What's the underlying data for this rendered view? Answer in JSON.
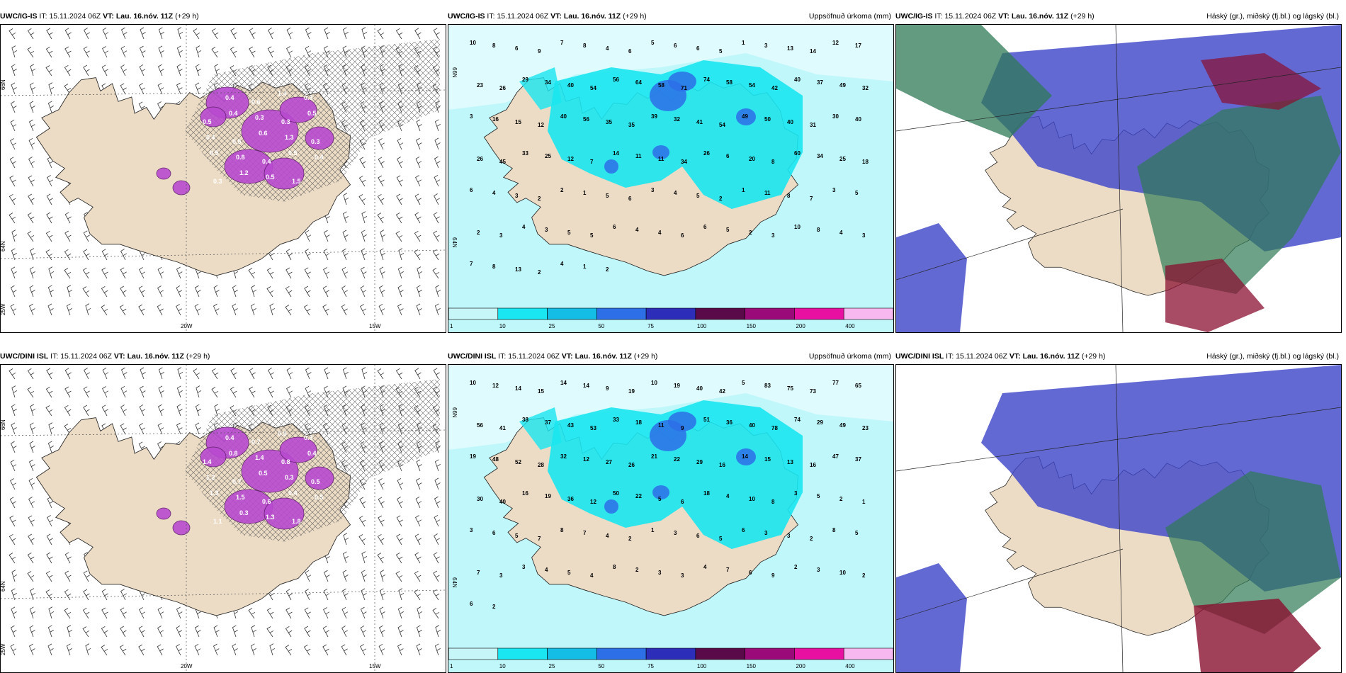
{
  "colors": {
    "land": "#ecdcc6",
    "precip_light": "#bff7fb",
    "precip_mid": "#19e6f0",
    "precip_heavy": "#2d6fe6",
    "magenta": "#b84ad0",
    "cloud_high": "#2f7a55",
    "cloud_mid": "#3c44c8",
    "cloud_low": "#8a1030"
  },
  "panels": [
    {
      "id": "ig-wind",
      "model": "UWC/IG-IS",
      "it_label": "IT:",
      "it_value": "15.11.2024 06Z",
      "vt_label": "VT:",
      "vt_value": "Lau. 16.nóv. 11Z",
      "lead": "(+29 h)",
      "title_right": "",
      "kind": "wind",
      "lat_labels": [
        "66N",
        "64N",
        "25W"
      ],
      "lon_labels": [
        "20W",
        "15W"
      ],
      "values": [
        "0.5",
        "0.4",
        "0.6",
        "1.4",
        "0.3",
        "0.5",
        "0.4",
        "0.3",
        "0.3",
        "0.5",
        "0.4",
        "0.5",
        "0.6",
        "1.3",
        "0.3",
        "0.5",
        "0.8",
        "0.4",
        "0.5",
        "0.4",
        "0.3",
        "1.2",
        "0.5",
        "1.5"
      ]
    },
    {
      "id": "ig-precip",
      "model": "UWC/IG-IS",
      "it_label": "IT:",
      "it_value": "15.11.2024 06Z",
      "vt_label": "VT:",
      "vt_value": "Lau. 16.nóv. 11Z",
      "lead": "(+29 h)",
      "title_right": "Uppsöfnuð úrkoma (mm)",
      "kind": "precip",
      "lat_labels": [
        "66N",
        "64N"
      ],
      "legend": [
        "1",
        "10",
        "25",
        "50",
        "75",
        "100",
        "150",
        "200",
        "400"
      ],
      "values": [
        "10",
        "8",
        "6",
        "9",
        "7",
        "8",
        "4",
        "6",
        "5",
        "6",
        "6",
        "5",
        "1",
        "3",
        "13",
        "14",
        "12",
        "17",
        "23",
        "26",
        "29",
        "34",
        "40",
        "54",
        "56",
        "64",
        "58",
        "71",
        "74",
        "58",
        "54",
        "42",
        "40",
        "37",
        "49",
        "32",
        "3",
        "16",
        "15",
        "12",
        "40",
        "56",
        "35",
        "35",
        "39",
        "32",
        "41",
        "54",
        "49",
        "50",
        "40",
        "31",
        "30",
        "40",
        "26",
        "45",
        "33",
        "25",
        "12",
        "7",
        "14",
        "11",
        "11",
        "34",
        "26",
        "6",
        "20",
        "8",
        "60",
        "34",
        "25",
        "18",
        "6",
        "4",
        "3",
        "2",
        "2",
        "1",
        "5",
        "6",
        "3",
        "4",
        "5",
        "2",
        "1",
        "11",
        "8",
        "7",
        "3",
        "5",
        "2",
        "3",
        "4",
        "3",
        "5",
        "5",
        "6",
        "4",
        "4",
        "6",
        "6",
        "5",
        "2",
        "3",
        "10",
        "8",
        "4",
        "3",
        "7",
        "8",
        "13",
        "2",
        "4",
        "1",
        "2"
      ]
    },
    {
      "id": "ig-cloud",
      "model": "UWC/IG-IS",
      "it_label": "IT:",
      "it_value": "15.11.2024 06Z",
      "vt_label": "VT:",
      "vt_value": "Lau. 16.nóv. 11Z",
      "lead": "(+29 h)",
      "title_right": "Háský (gr.), miðský (fj.bl.) og lágský (bl.)",
      "kind": "cloud"
    },
    {
      "id": "dini-wind",
      "model": "UWC/DINI ISL",
      "it_label": "IT:",
      "it_value": "15.11.2024 06Z",
      "vt_label": "VT:",
      "vt_value": "Lau. 16.nóv. 11Z",
      "lead": "(+29 h)",
      "title_right": "",
      "kind": "wind",
      "lat_labels": [
        "66N",
        "64N",
        "25W"
      ],
      "lon_labels": [
        "20W",
        "15W"
      ],
      "values": [
        "0.6",
        "0.4",
        "0.7",
        "0.5",
        "0.3",
        "1.4",
        "0.8",
        "1.4",
        "0.8",
        "0.4",
        "1.2",
        "0.7",
        "0.5",
        "0.3",
        "0.5",
        "1.3",
        "1.5",
        "0.6",
        "0.4",
        "0.5",
        "1.1",
        "0.3",
        "1.3",
        "1.8"
      ]
    },
    {
      "id": "dini-precip",
      "model": "UWC/DINI ISL",
      "it_label": "IT:",
      "it_value": "15.11.2024 06Z",
      "vt_label": "VT:",
      "vt_value": "Lau. 16.nóv. 11Z",
      "lead": "(+29 h)",
      "title_right": "Uppsöfnuð úrkoma (mm)",
      "kind": "precip",
      "lat_labels": [
        "66N",
        "64N"
      ],
      "legend": [
        "1",
        "10",
        "25",
        "50",
        "75",
        "100",
        "150",
        "200",
        "400"
      ],
      "values": [
        "10",
        "12",
        "14",
        "15",
        "14",
        "14",
        "9",
        "19",
        "10",
        "19",
        "40",
        "42",
        "5",
        "83",
        "75",
        "73",
        "77",
        "65",
        "56",
        "41",
        "38",
        "37",
        "43",
        "53",
        "33",
        "18",
        "11",
        "9",
        "51",
        "36",
        "40",
        "78",
        "74",
        "29",
        "49",
        "23",
        "19",
        "48",
        "52",
        "28",
        "32",
        "12",
        "27",
        "26",
        "21",
        "22",
        "29",
        "16",
        "14",
        "15",
        "13",
        "16",
        "47",
        "37",
        "30",
        "40",
        "16",
        "19",
        "36",
        "12",
        "50",
        "22",
        "5",
        "6",
        "18",
        "4",
        "10",
        "8",
        "3",
        "5",
        "2",
        "1",
        "3",
        "6",
        "5",
        "7",
        "8",
        "7",
        "4",
        "2",
        "1",
        "3",
        "6",
        "5",
        "6",
        "3",
        "3",
        "2",
        "8",
        "5",
        "7",
        "3",
        "3",
        "4",
        "5",
        "4",
        "8",
        "2",
        "3",
        "3",
        "4",
        "7",
        "6",
        "9",
        "2",
        "3",
        "10",
        "2",
        "6",
        "2"
      ]
    },
    {
      "id": "dini-cloud",
      "model": "UWC/DINI ISL",
      "it_label": "IT:",
      "it_value": "15.11.2024 06Z",
      "vt_label": "VT:",
      "vt_value": "Lau. 16.nóv. 11Z",
      "lead": "(+29 h)",
      "title_right": "Háský (gr.), miðský (fj.bl.) og lágský (bl.)",
      "kind": "cloud"
    }
  ]
}
